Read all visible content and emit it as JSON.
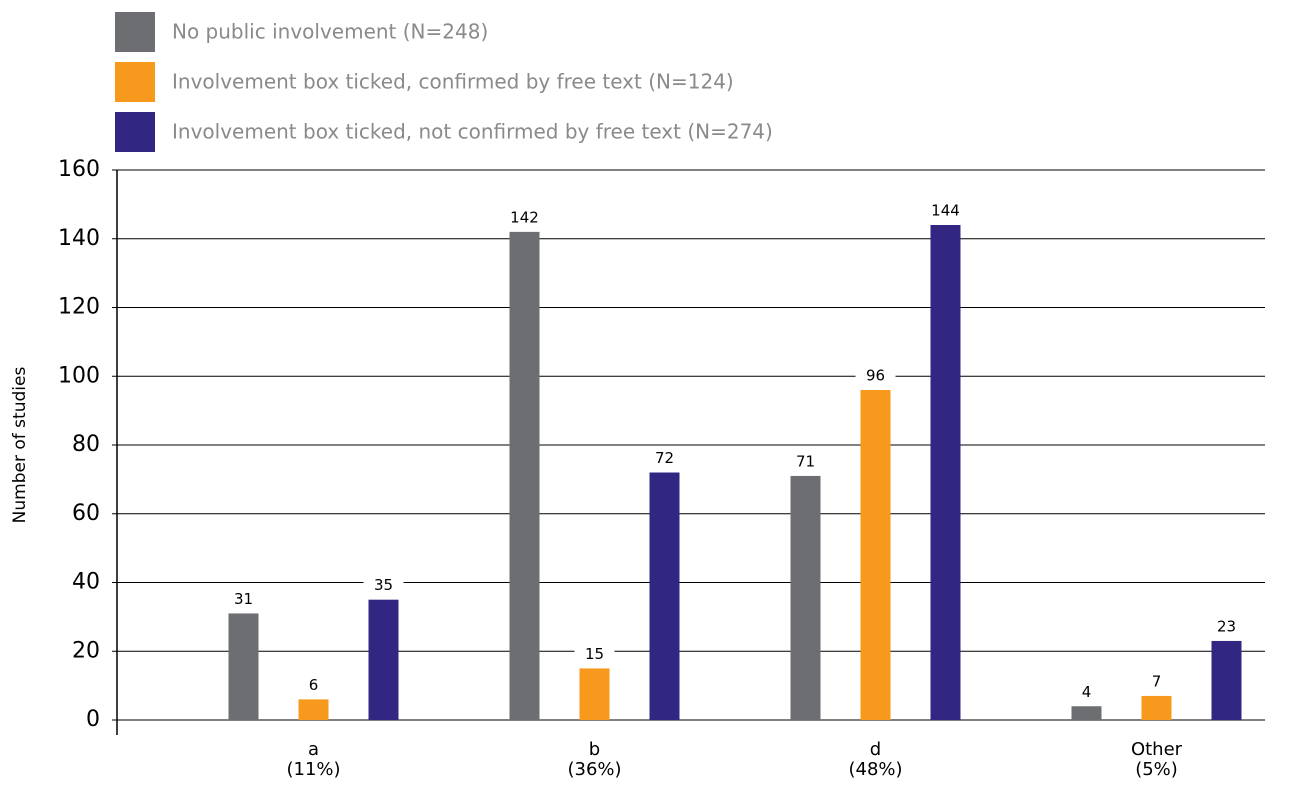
{
  "chart_data": {
    "type": "bar",
    "ylabel": "Number of studies",
    "categories": [
      [
        "a",
        "(11%)"
      ],
      [
        "b",
        "(36%)"
      ],
      [
        "d",
        "(48%)"
      ],
      [
        "Other",
        "(5%)"
      ]
    ],
    "series": [
      {
        "name": "No public involvement (N=248)",
        "color": "#6d6e71",
        "values": [
          31,
          142,
          71,
          4
        ]
      },
      {
        "name": "Involvement box ticked, confirmed by free text (N=124)",
        "color": "#f7991c",
        "values": [
          6,
          15,
          96,
          7
        ]
      },
      {
        "name": "Involvement box ticked, not confirmed by free text (N=274)",
        "color": "#312783",
        "values": [
          35,
          72,
          144,
          23
        ]
      }
    ],
    "ylim": [
      0,
      160
    ],
    "yticks": [
      0,
      20,
      40,
      60,
      80,
      100,
      120,
      140,
      160
    ],
    "grid": true
  }
}
